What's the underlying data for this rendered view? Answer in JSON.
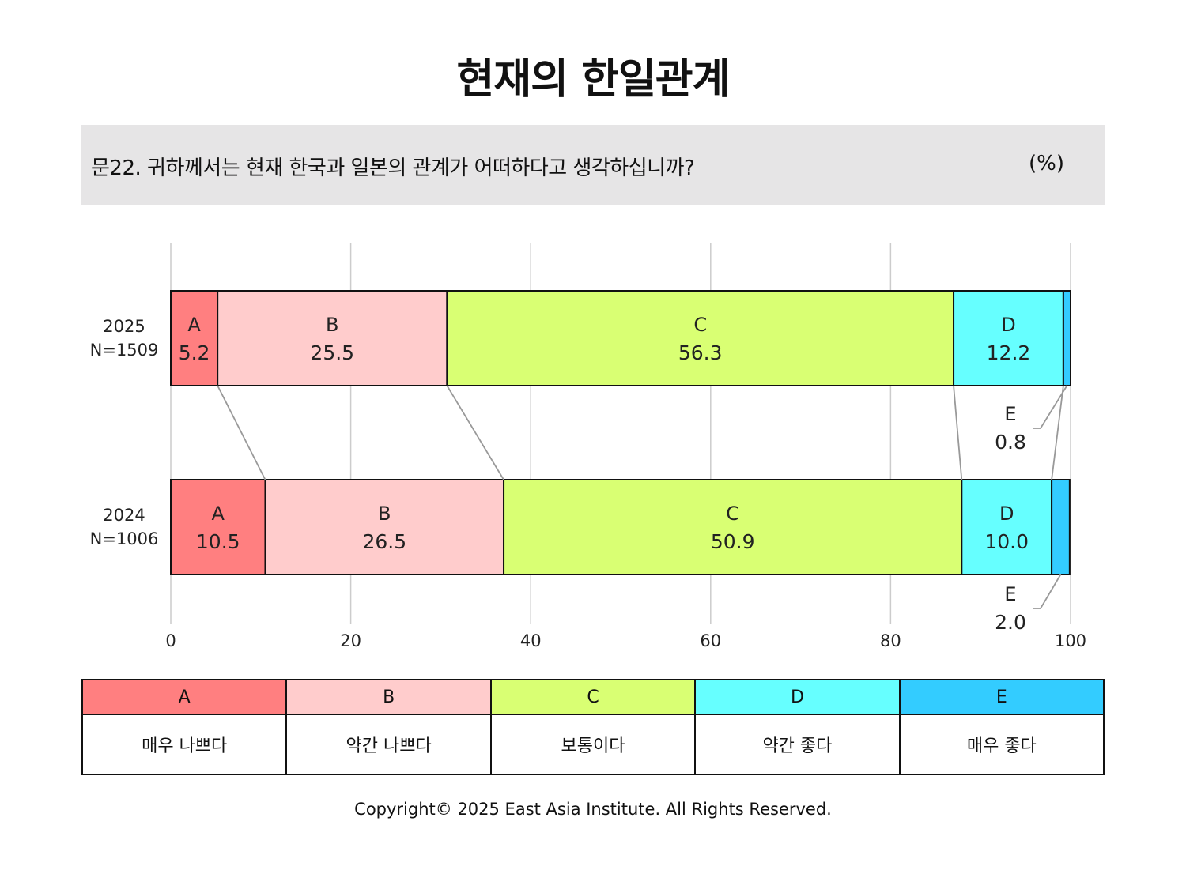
{
  "title": "현재의 한일관계",
  "question": {
    "text": "문22. 귀하께서는 현재 한국과 일본의 관계가 어떠하다고 생각하십니까?",
    "unit": "(%)"
  },
  "colors": {
    "A": "#ff7f80",
    "B": "#ffcccc",
    "C": "#d9ff73",
    "D": "#66ffff",
    "E": "#33ccff"
  },
  "chart_data": {
    "type": "bar",
    "orientation": "horizontal",
    "stacked": true,
    "title": "현재의 한일관계",
    "categories": [
      "A",
      "B",
      "C",
      "D",
      "E"
    ],
    "xlim": [
      0,
      100
    ],
    "xticks": [
      0,
      20,
      40,
      60,
      80,
      100
    ],
    "grid": true,
    "rows": [
      {
        "label_year": "2025",
        "label_n": "N=1509",
        "values": [
          5.2,
          25.5,
          56.3,
          12.2,
          0.8
        ]
      },
      {
        "label_year": "2024",
        "label_n": "N=1006",
        "values": [
          10.5,
          26.5,
          50.9,
          10.0,
          2.0
        ]
      }
    ]
  },
  "legend": [
    {
      "key": "A",
      "label": "매우 나쁘다"
    },
    {
      "key": "B",
      "label": "약간 나쁘다"
    },
    {
      "key": "C",
      "label": "보통이다"
    },
    {
      "key": "D",
      "label": "약간 좋다"
    },
    {
      "key": "E",
      "label": "매우 좋다"
    }
  ],
  "copyright": "Copyright© 2025 East Asia Institute. All Rights Reserved."
}
